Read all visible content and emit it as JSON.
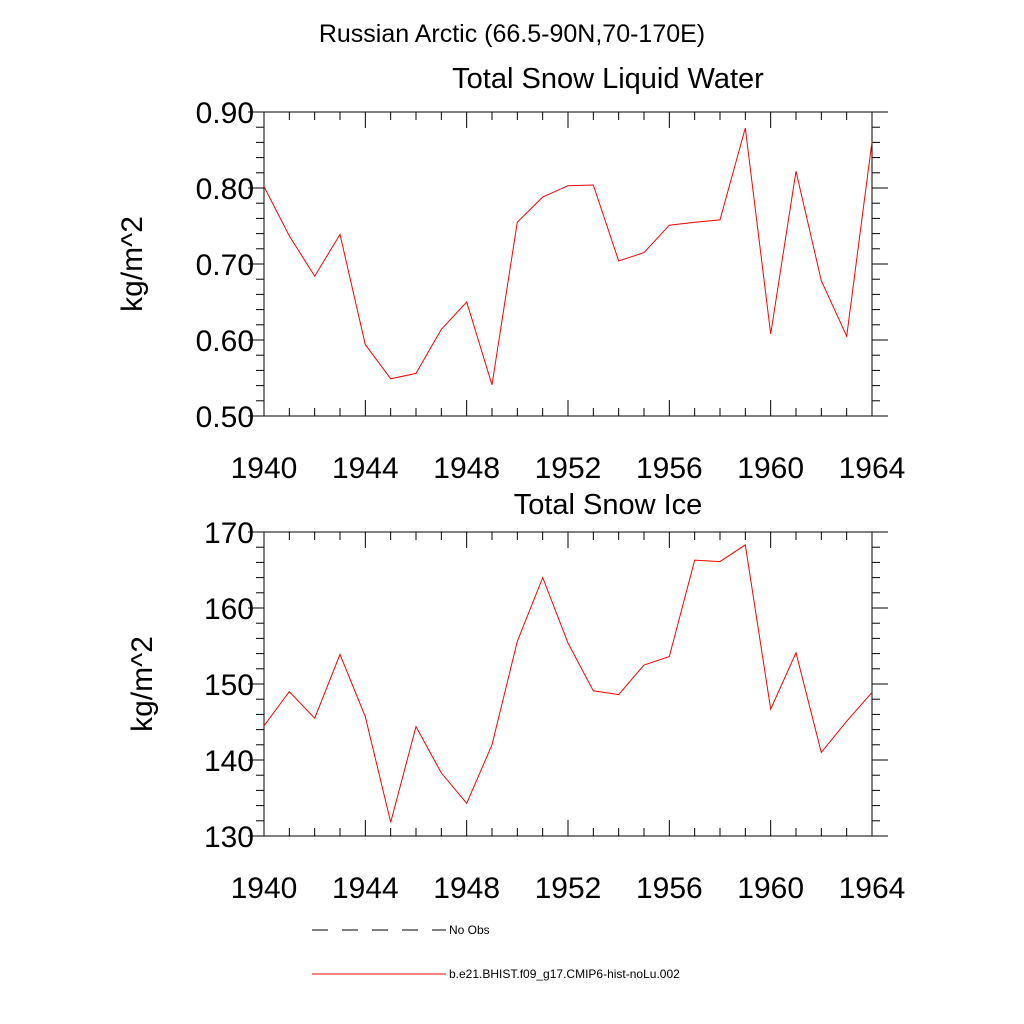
{
  "title": "Russian Arctic (66.5-90N,70-170E)",
  "legend": [
    {
      "label": "No Obs",
      "color": "#000000",
      "style": "dashed"
    },
    {
      "label": "b.e21.BHIST.f09_g17.CMIP6-hist-noLu.002",
      "color": "#ff0000",
      "style": "solid"
    }
  ],
  "chart_data": [
    {
      "type": "line",
      "title": "Total Snow Liquid Water",
      "ylabel": "kg/m^2",
      "xlabel": "",
      "xlim": [
        1940,
        1964
      ],
      "ylim": [
        0.5,
        0.9
      ],
      "xticks": [
        "1940",
        "1944",
        "1948",
        "1952",
        "1956",
        "1960",
        "1964"
      ],
      "yticks": [
        "0.50",
        "0.60",
        "0.70",
        "0.80",
        "0.90"
      ],
      "x": [
        1940,
        1941,
        1942,
        1943,
        1944,
        1945,
        1946,
        1947,
        1948,
        1949,
        1950,
        1951,
        1952,
        1953,
        1954,
        1955,
        1956,
        1957,
        1958,
        1959,
        1960,
        1961,
        1962,
        1963,
        1964
      ],
      "series": [
        {
          "name": "b.e21.BHIST.f09_g17.CMIP6-hist-noLu.002",
          "color": "#ff0000",
          "values": [
            0.802,
            0.737,
            0.684,
            0.739,
            0.594,
            0.549,
            0.556,
            0.614,
            0.65,
            0.541,
            0.755,
            0.788,
            0.803,
            0.804,
            0.704,
            0.715,
            0.751,
            0.755,
            0.758,
            0.879,
            0.608,
            0.822,
            0.678,
            0.605,
            0.861
          ]
        }
      ]
    },
    {
      "type": "line",
      "title": "Total Snow Ice",
      "ylabel": "kg/m^2",
      "xlabel": "",
      "xlim": [
        1940,
        1964
      ],
      "ylim": [
        130,
        170
      ],
      "xticks": [
        "1940",
        "1944",
        "1948",
        "1952",
        "1956",
        "1960",
        "1964"
      ],
      "yticks": [
        "130",
        "140",
        "150",
        "160",
        "170"
      ],
      "x": [
        1940,
        1941,
        1942,
        1943,
        1944,
        1945,
        1946,
        1947,
        1948,
        1949,
        1950,
        1951,
        1952,
        1953,
        1954,
        1955,
        1956,
        1957,
        1958,
        1959,
        1960,
        1961,
        1962,
        1963,
        1964
      ],
      "series": [
        {
          "name": "b.e21.BHIST.f09_g17.CMIP6-hist-noLu.002",
          "color": "#ff0000",
          "values": [
            144.5,
            149.0,
            145.5,
            153.9,
            145.7,
            131.8,
            144.4,
            138.3,
            134.3,
            142.0,
            155.6,
            164.0,
            155.4,
            149.1,
            148.6,
            152.5,
            153.6,
            166.3,
            166.1,
            168.3,
            146.7,
            154.1,
            141.0,
            145.1,
            148.9
          ]
        }
      ]
    }
  ]
}
